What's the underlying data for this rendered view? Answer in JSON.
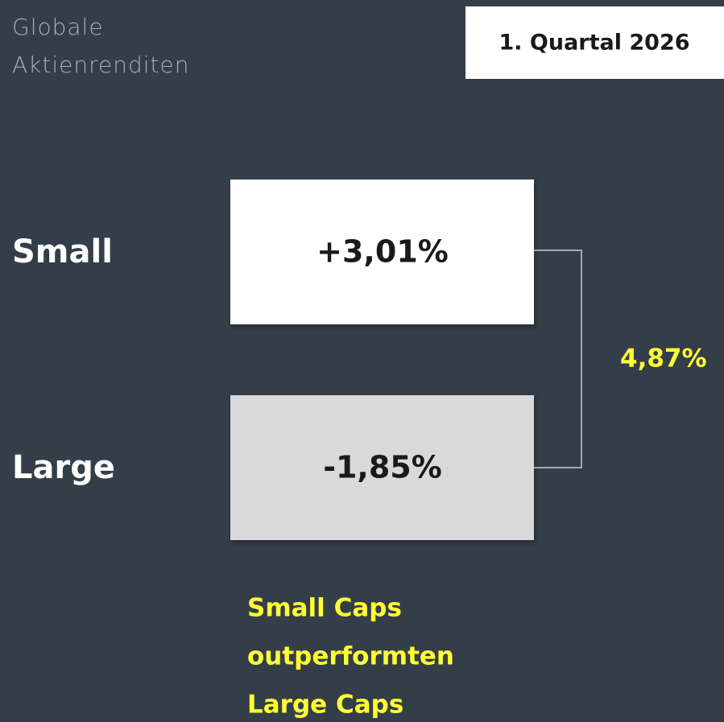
{
  "header": {
    "title": [
      "Globale",
      "Aktienrenditen"
    ],
    "badge": "1. Quartal 2026"
  },
  "rows": [
    {
      "label": "Small",
      "value": "+3,01%"
    },
    {
      "label": "Large",
      "value": "-1,85%"
    }
  ],
  "difference": "4,87%",
  "note": [
    "Small Caps",
    "outperformten",
    "Large Caps"
  ]
}
